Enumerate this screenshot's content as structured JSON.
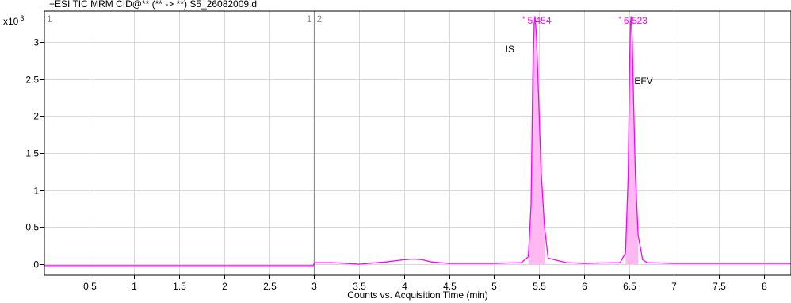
{
  "chart_data": {
    "type": "line",
    "title": "+ESI TIC MRM CID@** (** -> **) S5_26082009.d",
    "y_multiplier": "x10",
    "y_multiplier_exp": "3",
    "xlabel": "Counts vs. Acquisition Time (min)",
    "ylabel": "",
    "xlim": [
      0,
      8.3
    ],
    "ylim": [
      -0.15,
      3.42
    ],
    "x_ticks": [
      0.5,
      1,
      1.5,
      2,
      2.5,
      3,
      3.5,
      4,
      4.5,
      5,
      5.5,
      6,
      6.5,
      7,
      7.5,
      8
    ],
    "x_tick_labels": [
      "0.5",
      "1",
      "1.5",
      "2",
      "2.5",
      "3",
      "3.5",
      "4",
      "4.5",
      "5",
      "5.5",
      "6",
      "6.5",
      "7",
      "7.5",
      "8"
    ],
    "y_ticks": [
      0,
      0.5,
      1,
      1.5,
      2,
      2.5,
      3
    ],
    "y_tick_labels": [
      "0",
      "0.5",
      "1",
      "1.5",
      "2",
      "2.5",
      "3"
    ],
    "grid": true,
    "segment_boundary": 3,
    "segment_labels": [
      {
        "text": "1",
        "x": 0
      },
      {
        "text": "1",
        "x": 3,
        "side": "left"
      },
      {
        "text": "2",
        "x": 3,
        "side": "right"
      }
    ],
    "series": [
      {
        "color": "#ff00ff",
        "x": [
          0,
          2.99,
          3.0,
          3.2,
          3.5,
          3.8,
          4.0,
          4.1,
          4.2,
          4.3,
          4.5,
          5.0,
          5.3,
          5.38,
          5.41,
          5.43,
          5.445,
          5.454,
          5.47,
          5.49,
          5.52,
          5.56,
          5.6,
          5.8,
          6.0,
          6.4,
          6.46,
          6.49,
          6.505,
          6.515,
          6.523,
          6.535,
          6.55,
          6.57,
          6.6,
          6.65,
          6.7,
          7.0,
          7.5,
          8.0,
          8.3
        ],
        "y": [
          -0.02,
          -0.02,
          0.02,
          0.02,
          0.0,
          0.03,
          0.06,
          0.07,
          0.06,
          0.03,
          0.01,
          0.01,
          0.02,
          0.1,
          0.8,
          2.6,
          3.25,
          3.35,
          3.1,
          2.4,
          1.3,
          0.5,
          0.08,
          0.02,
          0.01,
          0.02,
          0.15,
          1.2,
          2.6,
          3.25,
          3.35,
          3.05,
          2.2,
          1.2,
          0.4,
          0.06,
          0.02,
          0.01,
          0.01,
          0.01,
          0.01
        ]
      }
    ],
    "peaks": [
      {
        "rt": 5.454,
        "label": "5.454",
        "marker": "*",
        "compound": "IS"
      },
      {
        "rt": 6.523,
        "label": "6.523",
        "marker": "*",
        "compound": "EFV"
      }
    ]
  }
}
